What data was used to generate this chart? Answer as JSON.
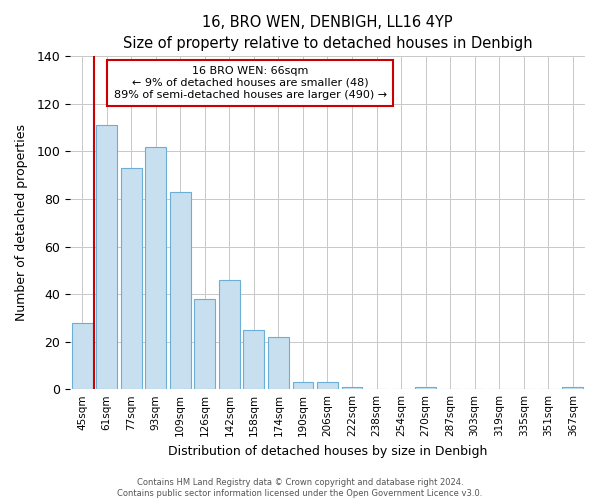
{
  "title": "16, BRO WEN, DENBIGH, LL16 4YP",
  "subtitle": "Size of property relative to detached houses in Denbigh",
  "xlabel": "Distribution of detached houses by size in Denbigh",
  "ylabel": "Number of detached properties",
  "bar_labels": [
    "45sqm",
    "61sqm",
    "77sqm",
    "93sqm",
    "109sqm",
    "126sqm",
    "142sqm",
    "158sqm",
    "174sqm",
    "190sqm",
    "206sqm",
    "222sqm",
    "238sqm",
    "254sqm",
    "270sqm",
    "287sqm",
    "303sqm",
    "319sqm",
    "335sqm",
    "351sqm",
    "367sqm"
  ],
  "bar_values": [
    28,
    111,
    93,
    102,
    83,
    38,
    46,
    25,
    22,
    3,
    3,
    1,
    0,
    0,
    1,
    0,
    0,
    0,
    0,
    0,
    1
  ],
  "bar_color": "#c8dff0",
  "bar_edge_color": "#6baed6",
  "vline_color": "#cc0000",
  "ylim": [
    0,
    140
  ],
  "yticks": [
    0,
    20,
    40,
    60,
    80,
    100,
    120,
    140
  ],
  "annotation_title": "16 BRO WEN: 66sqm",
  "annotation_line1": "← 9% of detached houses are smaller (48)",
  "annotation_line2": "89% of semi-detached houses are larger (490) →",
  "footer1": "Contains HM Land Registry data © Crown copyright and database right 2024.",
  "footer2": "Contains public sector information licensed under the Open Government Licence v3.0.",
  "bg_color": "#f0f4f8"
}
